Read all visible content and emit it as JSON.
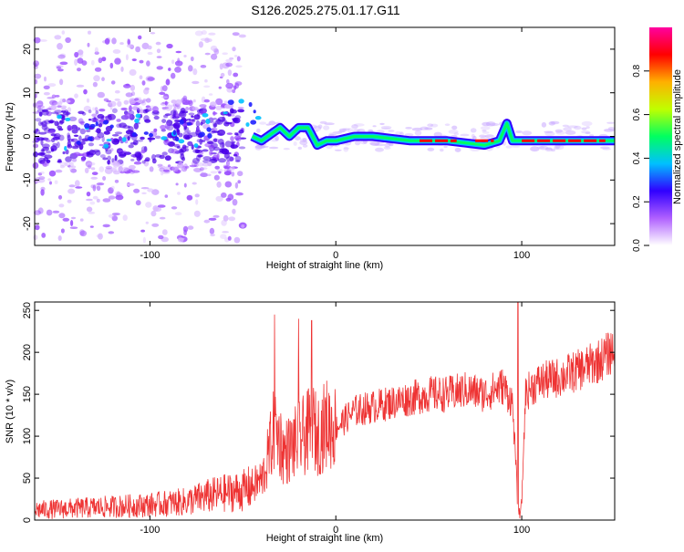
{
  "title": "S126.2025.275.01.17.G11",
  "chart_data": [
    {
      "type": "heatmap",
      "name": "spectrogram",
      "xlabel": "Height of straight line (km)",
      "ylabel": "Frequency (Hz)",
      "xlim": [
        -162,
        150
      ],
      "ylim": [
        -25,
        25
      ],
      "xticks": [
        -100,
        0,
        100
      ],
      "yticks": [
        -20,
        -10,
        0,
        10,
        20
      ],
      "colorbar": {
        "label": "Normalized spectral amplitude",
        "ticks": [
          0.0,
          0.2,
          0.4,
          0.6,
          0.8
        ],
        "range": [
          0,
          1
        ],
        "colors": [
          "#ffffff",
          "#b060ff",
          "#3000ff",
          "#00c0ff",
          "#00ff60",
          "#c0ff00",
          "#ffb000",
          "#ff0000",
          "#ff00a0"
        ]
      },
      "ridge": {
        "description": "narrow line near 0 Hz",
        "x": [
          -45,
          -40,
          -35,
          -30,
          -25,
          -20,
          -15,
          -10,
          -5,
          0,
          10,
          20,
          40,
          60,
          80,
          88,
          92,
          95,
          100,
          120,
          150
        ],
        "freq": [
          0,
          -1,
          0.5,
          2,
          0,
          2,
          2,
          -2,
          -1,
          -1,
          0,
          0,
          -1,
          -1,
          -2,
          -1,
          3,
          -1,
          -1,
          -1,
          -1
        ]
      }
    },
    {
      "type": "line",
      "name": "snr",
      "xlabel": "Height of straight line (km)",
      "ylabel": "SNR (10 * v/v)",
      "xlim": [
        -162,
        150
      ],
      "ylim": [
        0,
        260
      ],
      "xticks": [
        -100,
        0,
        100
      ],
      "yticks": [
        0,
        50,
        100,
        150,
        200,
        250
      ],
      "color": "#ee3333",
      "series": [
        {
          "name": "SNR",
          "x": [
            -162,
            -140,
            -120,
            -100,
            -80,
            -70,
            -60,
            -50,
            -45,
            -40,
            -38,
            -35,
            -33,
            -30,
            -28,
            -25,
            -20,
            -15,
            -12,
            -10,
            -5,
            0,
            5,
            10,
            20,
            30,
            40,
            50,
            60,
            70,
            80,
            90,
            95,
            97,
            98,
            100,
            102,
            105,
            110,
            120,
            130,
            140,
            145,
            150
          ],
          "values": [
            12,
            14,
            16,
            18,
            22,
            28,
            32,
            35,
            40,
            48,
            60,
            90,
            110,
            95,
            80,
            85,
            95,
            105,
            110,
            100,
            115,
            110,
            120,
            130,
            135,
            140,
            145,
            150,
            150,
            155,
            150,
            160,
            140,
            60,
            5,
            20,
            150,
            158,
            165,
            170,
            178,
            188,
            195,
            205
          ],
          "spikes": [
            {
              "x": -33,
              "value": 245
            },
            {
              "x": -20,
              "value": 240
            },
            {
              "x": -13,
              "value": 238
            },
            {
              "x": 98,
              "value": 265
            },
            {
              "x": 99,
              "value": 2
            }
          ]
        }
      ]
    }
  ]
}
